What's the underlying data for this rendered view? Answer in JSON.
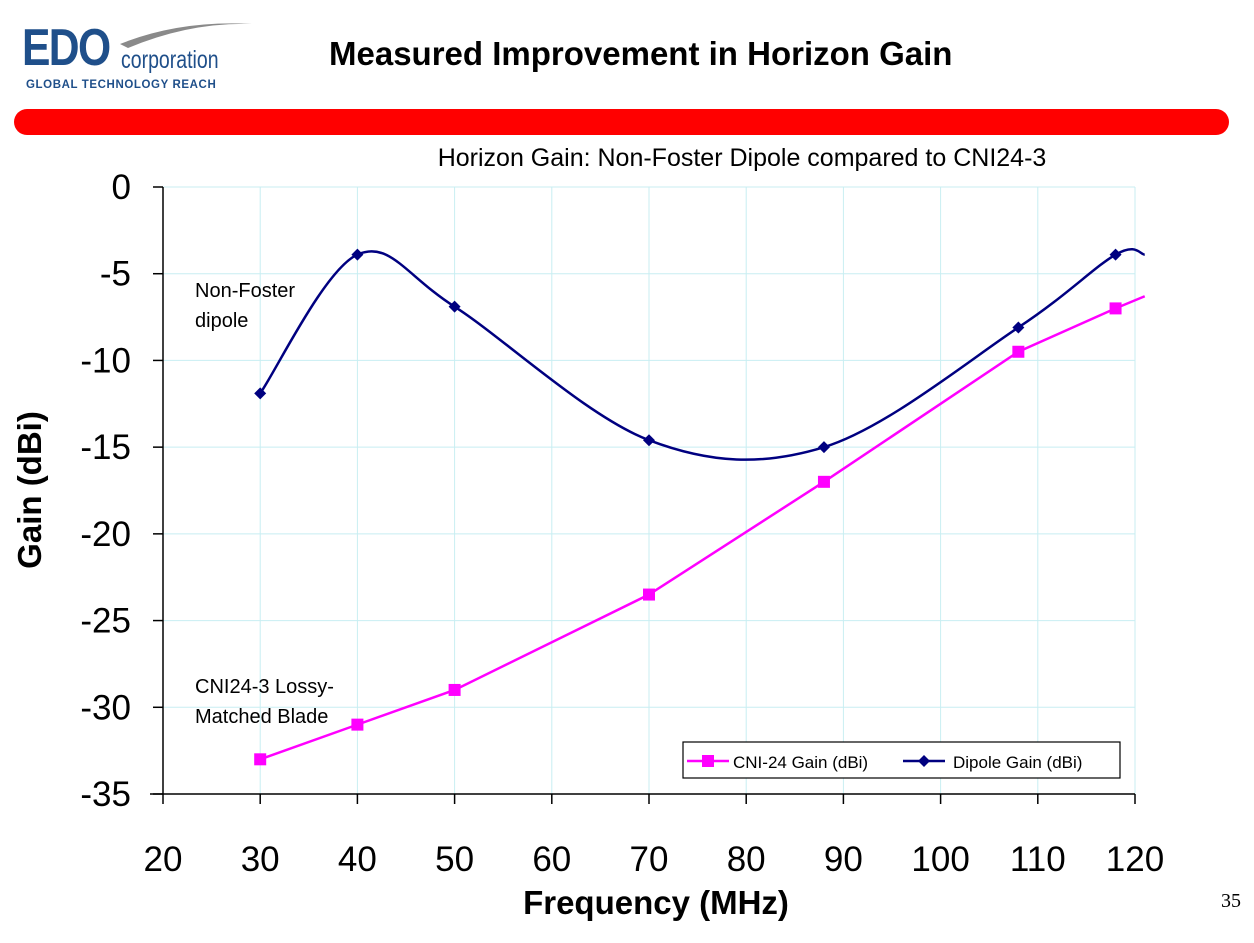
{
  "header": {
    "logo_main": "EDO",
    "logo_sub": "corporation",
    "logo_tagline": "GLOBAL TECHNOLOGY REACH",
    "title": "Measured Improvement in Horizon Gain",
    "accent_color": "#ff0000",
    "logo_color": "#1f4f8a"
  },
  "page_number": "35",
  "chart_data": {
    "type": "line",
    "title": "Horizon Gain: Non-Foster Dipole compared to  CNI24-3",
    "xlabel": "Frequency  (MHz)",
    "ylabel": "Gain  (dBi)",
    "xlim": [
      20,
      120
    ],
    "ylim": [
      -35,
      0
    ],
    "xticks": [
      "20",
      "30",
      "40",
      "50",
      "60",
      "70",
      "80",
      "90",
      "100",
      "110",
      "120"
    ],
    "yticks": [
      "0",
      "-5",
      "-10",
      "-15",
      "-20",
      "-25",
      "-30",
      "-35"
    ],
    "grid": true,
    "legend_position": "bottom-right",
    "series": [
      {
        "name": "CNI-24 Gain (dBi)",
        "color": "#ff00ff",
        "marker": "square",
        "smooth": false,
        "x": [
          30,
          40,
          50,
          70,
          88,
          108,
          118,
          121
        ],
        "y": [
          -33,
          -31,
          -29,
          -23.5,
          -17,
          -9.5,
          -7,
          -6.3
        ]
      },
      {
        "name": "Dipole Gain (dBi)",
        "color": "#000080",
        "marker": "diamond",
        "smooth": true,
        "x": [
          30,
          40,
          50,
          70,
          88,
          108,
          118,
          121
        ],
        "y": [
          -11.9,
          -3.9,
          -6.9,
          -14.6,
          -15,
          -8.1,
          -3.9,
          -3.9
        ]
      }
    ],
    "annotations": [
      {
        "text": "Non-Foster\ndipole"
      },
      {
        "text": "CNI24-3 Lossy-\nMatched Blade"
      }
    ]
  }
}
